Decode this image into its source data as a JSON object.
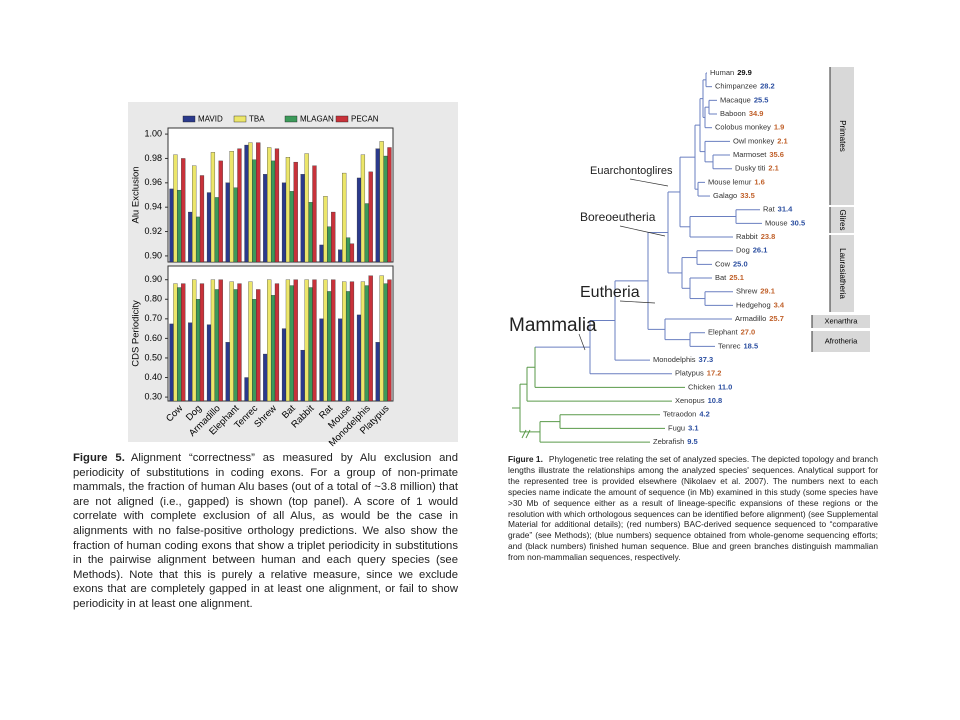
{
  "chart_data": [
    {
      "type": "bar",
      "ylabel": "Alu Exclusion",
      "ylim": [
        0.895,
        1.005
      ],
      "yticks": [
        {
          "value": 0.9,
          "label": "0.90"
        },
        {
          "value": 0.92,
          "label": "0.92"
        },
        {
          "value": 0.94,
          "label": "0.94"
        },
        {
          "value": 0.96,
          "label": "0.96"
        },
        {
          "value": 0.98,
          "label": "0.98"
        },
        {
          "value": 1.0,
          "label": "1.00"
        }
      ],
      "series": [
        {
          "name": "MAVID",
          "color": "#2b3a8c",
          "values": [
            0.955,
            0.936,
            0.952,
            0.96,
            0.991,
            0.967,
            0.96,
            0.967,
            0.909,
            0.905,
            0.964,
            0.988
          ]
        },
        {
          "name": "TBA",
          "color": "#ece66a",
          "values": [
            0.983,
            0.974,
            0.985,
            0.986,
            0.993,
            0.989,
            0.981,
            0.984,
            0.949,
            0.968,
            0.983,
            0.994
          ]
        },
        {
          "name": "MLAGAN",
          "color": "#3c9a5a",
          "values": [
            0.954,
            0.932,
            0.948,
            0.956,
            0.979,
            0.978,
            0.953,
            0.944,
            0.924,
            0.915,
            0.943,
            0.982
          ]
        },
        {
          "name": "PECAN",
          "color": "#c8323a",
          "values": [
            0.98,
            0.966,
            0.978,
            0.988,
            0.993,
            0.988,
            0.977,
            0.974,
            0.936,
            0.91,
            0.969,
            0.989
          ]
        }
      ]
    },
    {
      "type": "bar",
      "ylabel": "CDS Periodicity",
      "ylim": [
        0.28,
        0.97
      ],
      "yticks": [
        {
          "value": 0.3,
          "label": "0.30"
        },
        {
          "value": 0.4,
          "label": "0.40"
        },
        {
          "value": 0.5,
          "label": "0.50"
        },
        {
          "value": 0.6,
          "label": "0.60"
        },
        {
          "value": 0.7,
          "label": "0.70"
        },
        {
          "value": 0.8,
          "label": "0.80"
        },
        {
          "value": 0.9,
          "label": "0.90"
        }
      ],
      "categories": [
        "Cow",
        "Dog",
        "Armadillo",
        "Elephant",
        "Tenrec",
        "Shrew",
        "Bat",
        "Rabbit",
        "Rat",
        "Mouse",
        "Monodelphis",
        "Platypus"
      ],
      "series": [
        {
          "color": "#2b3a8c",
          "values": [
            0.674,
            0.68,
            0.67,
            0.58,
            0.4,
            0.52,
            0.65,
            0.54,
            0.7,
            0.7,
            0.72,
            0.58
          ]
        },
        {
          "color": "#ece66a",
          "values": [
            0.88,
            0.9,
            0.9,
            0.89,
            0.89,
            0.9,
            0.9,
            0.9,
            0.9,
            0.89,
            0.89,
            0.92
          ]
        },
        {
          "color": "#3c9a5a",
          "values": [
            0.86,
            0.8,
            0.85,
            0.85,
            0.8,
            0.82,
            0.87,
            0.86,
            0.84,
            0.84,
            0.87,
            0.88
          ]
        },
        {
          "color": "#c8323a",
          "values": [
            0.88,
            0.88,
            0.9,
            0.88,
            0.85,
            0.88,
            0.9,
            0.9,
            0.9,
            0.89,
            0.92,
            0.9
          ]
        }
      ]
    }
  ],
  "figure5": {
    "label": "Figure 5.",
    "caption": "Alignment “correctness” as measured by Alu exclusion and periodicity of substitutions in coding exons. For a group of non-primate mammals, the fraction of human Alu bases (out of a total of ~3.8 million) that are not aligned (i.e., gapped) is shown (top panel). A score of 1 would correlate with complete exclusion of all Alus, as would be the case in alignments with no false-positive orthology predictions. We also show the fraction of human coding exons that show a triplet periodicity in substitutions in the pairwise alignment between human and each query species (see Methods). Note that this is purely a relative measure, since we exclude exons that are completely gapped in at least one alignment, or fail to show periodicity in at least one alignment."
  },
  "figure1": {
    "label": "Figure 1.",
    "caption": "Phylogenetic tree relating the set of analyzed species. The depicted topology and branch lengths illustrate the relationships among the analyzed species' sequences. Analytical support for the represented tree is provided elsewhere (Nikolaev et al. 2007). The numbers next to each species name indicate the amount of sequence (in Mb) examined in this study (some species have >30 Mb of sequence either as a result of lineage-specific expansions of these regions or the resolution with which orthologous sequences can be identified before alignment) (see Supplemental Material for additional details); (red numbers) BAC-derived sequence sequenced to “comparative grade” (see Methods); (blue numbers) sequence obtained from whole-genome sequencing efforts; and (black numbers) finished human sequence. Blue and green branches distinguish mammalian from non-mammalian sequences, respectively.",
    "species": [
      {
        "name": "Human",
        "mb": "29.9",
        "color": "#111111"
      },
      {
        "name": "Chimpanzee",
        "mb": "28.2",
        "color": "#2b4ea0"
      },
      {
        "name": "Macaque",
        "mb": "25.5",
        "color": "#2b4ea0"
      },
      {
        "name": "Baboon",
        "mb": "34.9",
        "color": "#c0602a"
      },
      {
        "name": "Colobus monkey",
        "mb": "1.9",
        "color": "#c0602a"
      },
      {
        "name": "Owl monkey",
        "mb": "2.1",
        "color": "#c0602a"
      },
      {
        "name": "Marmoset",
        "mb": "35.6",
        "color": "#c0602a"
      },
      {
        "name": "Dusky titi",
        "mb": "2.1",
        "color": "#c0602a"
      },
      {
        "name": "Mouse lemur",
        "mb": "1.6",
        "color": "#c0602a"
      },
      {
        "name": "Galago",
        "mb": "33.5",
        "color": "#c0602a"
      },
      {
        "name": "Rat",
        "mb": "31.4",
        "color": "#2b4ea0"
      },
      {
        "name": "Mouse",
        "mb": "30.5",
        "color": "#2b4ea0"
      },
      {
        "name": "Rabbit",
        "mb": "23.8",
        "color": "#c0602a"
      },
      {
        "name": "Dog",
        "mb": "26.1",
        "color": "#2b4ea0"
      },
      {
        "name": "Cow",
        "mb": "25.0",
        "color": "#2b4ea0"
      },
      {
        "name": "Bat",
        "mb": "25.1",
        "color": "#c0602a"
      },
      {
        "name": "Shrew",
        "mb": "29.1",
        "color": "#c0602a"
      },
      {
        "name": "Hedgehog",
        "mb": "3.4",
        "color": "#c0602a"
      },
      {
        "name": "Armadillo",
        "mb": "25.7",
        "color": "#c0602a"
      },
      {
        "name": "Elephant",
        "mb": "27.0",
        "color": "#c0602a"
      },
      {
        "name": "Tenrec",
        "mb": "18.5",
        "color": "#2b4ea0"
      },
      {
        "name": "Monodelphis",
        "mb": "37.3",
        "color": "#2b4ea0"
      },
      {
        "name": "Platypus",
        "mb": "17.2",
        "color": "#c0602a"
      },
      {
        "name": "Chicken",
        "mb": "11.0",
        "color": "#2b4ea0"
      },
      {
        "name": "Xenopus",
        "mb": "10.8",
        "color": "#2b4ea0"
      },
      {
        "name": "Tetraodon",
        "mb": "4.2",
        "color": "#2b4ea0"
      },
      {
        "name": "Fugu",
        "mb": "3.1",
        "color": "#2b4ea0"
      },
      {
        "name": "Zebrafish",
        "mb": "9.5",
        "color": "#2b4ea0"
      }
    ],
    "clades": [
      "Primates",
      "Glires",
      "Laurasiatheria",
      "Xenarthra",
      "Afrotheria"
    ],
    "nodes": [
      "Euarchontoglires",
      "Boreoeutheria",
      "Eutheria",
      "Mammalia"
    ]
  }
}
